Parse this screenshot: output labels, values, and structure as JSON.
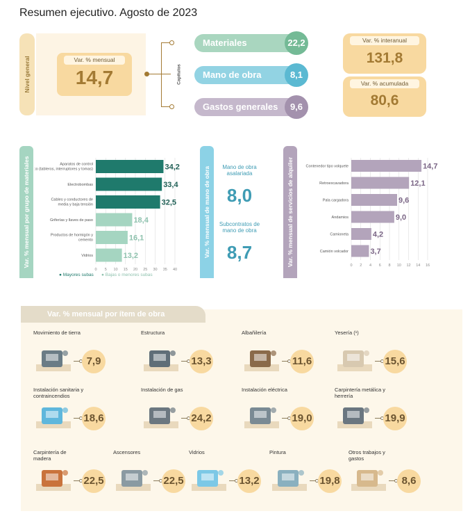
{
  "title": "Resumen ejecutivo. Agosto de 2023",
  "nivel_general": {
    "side_label": "Nivel general",
    "mensual_label": "Var. % mensual",
    "mensual_value": "14,7",
    "capitulos_label": "Capítulos",
    "capitulos": [
      {
        "label": "Materiales",
        "value": "22,2",
        "color": "#a9d6bf",
        "circle_color": "#74ba96"
      },
      {
        "label": "Mano de obra",
        "value": "8,1",
        "color": "#92d3e3",
        "circle_color": "#5bb9d2"
      },
      {
        "label": "Gastos generales",
        "value": "9,6",
        "color": "#c5b8cc",
        "circle_color": "#a391ad"
      }
    ],
    "interanual_label": "Var. % interanual",
    "interanual_value": "131,8",
    "acumulada_label": "Var. % acumulada",
    "acumulada_value": "80,6"
  },
  "colors": {
    "dark_teal": "#1f7a6c",
    "light_teal": "#a5d5c1",
    "sky": "#8cd2e6",
    "sky_text": "#3f9cb4",
    "purple": "#b3a4bb",
    "purple_text": "#7a6585",
    "gold": "#f8d9a0"
  },
  "chart_data": [
    {
      "type": "bar",
      "orientation": "horizontal",
      "side_label": "Var. % mensual por grupo de materiales",
      "categories": [
        "Aparatos de control eléctrico (tableros, interruptores y tomas)",
        "Electrobombas",
        "Cables y conductores de media y baja tensión",
        "Griferías y llaves de paso",
        "Productos de hormigón y cemento",
        "Vidrios"
      ],
      "values": [
        34.2,
        33.4,
        32.5,
        18.4,
        16.1,
        13.2
      ],
      "value_labels": [
        "34,2",
        "33,4",
        "32,5",
        "18,4",
        "16,1",
        "13,2"
      ],
      "groups": [
        "Mayores subas",
        "Mayores subas",
        "Mayores subas",
        "Bajas o menores subas",
        "Bajas o menores subas",
        "Bajas o menores subas"
      ],
      "legend": [
        "Mayores subas",
        "Bajas o menores subas"
      ],
      "xlim": [
        0,
        40
      ],
      "ticks": [
        "0",
        "5",
        "10",
        "15",
        "20",
        "25",
        "30",
        "35",
        "40"
      ],
      "grid": true
    },
    {
      "type": "table",
      "side_label": "Var. % mensual de mano de obra",
      "rows": [
        {
          "label": "Mano de obra asalariada",
          "value": "8,0"
        },
        {
          "label": "Subcontratos de mano de obra",
          "value": "8,7"
        }
      ]
    },
    {
      "type": "bar",
      "orientation": "horizontal",
      "side_label": "Var. % mensual de servicios de alquiler",
      "categories": [
        "Contenedor tipo volquete",
        "Retroexcavadora",
        "Pala cargadora",
        "Andamios",
        "Camioneta",
        "Camión volcador"
      ],
      "values": [
        14.7,
        12.1,
        9.6,
        9.0,
        4.2,
        3.7
      ],
      "value_labels": [
        "14,7",
        "12,1",
        "9,6",
        "9,0",
        "4,2",
        "3,7"
      ],
      "xlim": [
        0,
        16
      ],
      "ticks": [
        "0",
        "2",
        "4",
        "6",
        "8",
        "10",
        "12",
        "14",
        "16"
      ],
      "grid": true
    },
    {
      "type": "table",
      "title": "Var. % mensual por ítem de obra",
      "items": [
        {
          "label": "Movimiento de tierra",
          "value": "7,9",
          "icon": "wheelbarrow-icon"
        },
        {
          "label": "Estructura",
          "value": "13,3",
          "icon": "concrete-form-icon"
        },
        {
          "label": "Albañilería",
          "value": "11,6",
          "icon": "trowel-bricks-icon"
        },
        {
          "label": "Yesería (¹)",
          "value": "15,6",
          "icon": "plaster-panel-icon"
        },
        {
          "label": "Instalación sanitaria y contraincendios",
          "value": "18,6",
          "icon": "pipes-icon"
        },
        {
          "label": "Instalación de gas",
          "value": "24,2",
          "icon": "gas-meter-icon"
        },
        {
          "label": "Instalación eléctrica",
          "value": "19,0",
          "icon": "electric-panel-icon"
        },
        {
          "label": "Carpintería metálica y herrería",
          "value": "19,9",
          "icon": "drill-press-icon"
        },
        {
          "label": "Carpintería de madera",
          "value": "22,5",
          "icon": "saw-wood-icon"
        },
        {
          "label": "Ascensores",
          "value": "22,5",
          "icon": "elevator-icon"
        },
        {
          "label": "Vidrios",
          "value": "13,2",
          "icon": "glass-squeegee-icon"
        },
        {
          "label": "Pintura",
          "value": "19,8",
          "icon": "paint-bucket-icon"
        },
        {
          "label": "Otros trabajos y gastos",
          "value": "8,6",
          "icon": "scaffold-icon"
        }
      ]
    }
  ]
}
